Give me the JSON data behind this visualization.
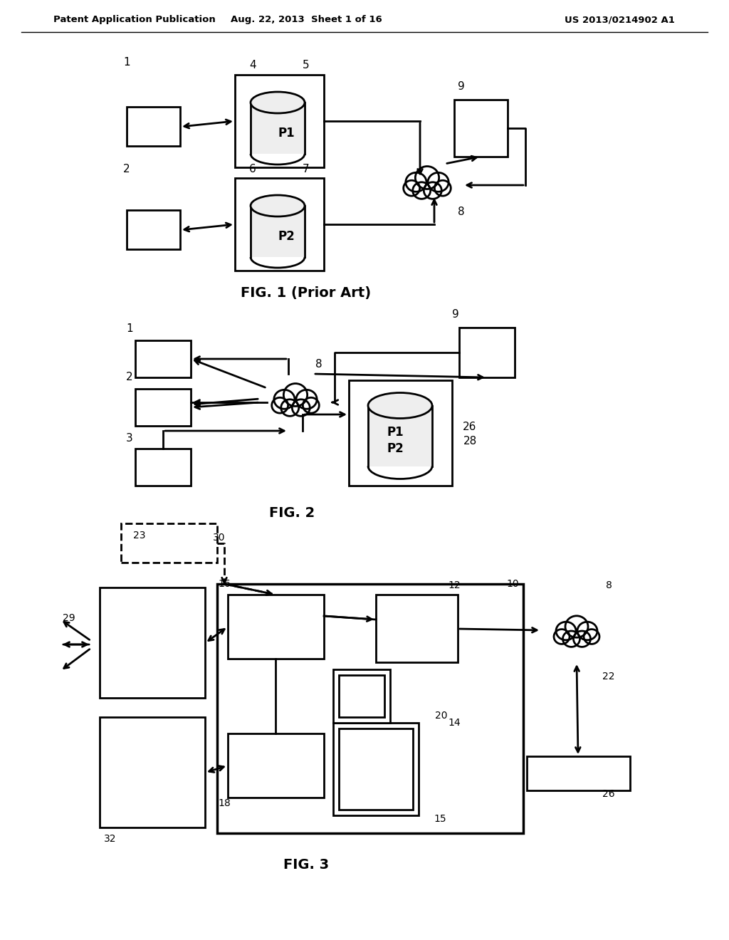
{
  "header_left": "Patent Application Publication",
  "header_mid": "Aug. 22, 2013  Sheet 1 of 16",
  "header_right": "US 2013/0214902 A1",
  "fig1_caption": "FIG. 1 (Prior Art)",
  "fig2_caption": "FIG. 2",
  "fig3_caption": "FIG. 3",
  "bg_color": "#ffffff",
  "line_color": "#000000",
  "line_width": 2.0
}
